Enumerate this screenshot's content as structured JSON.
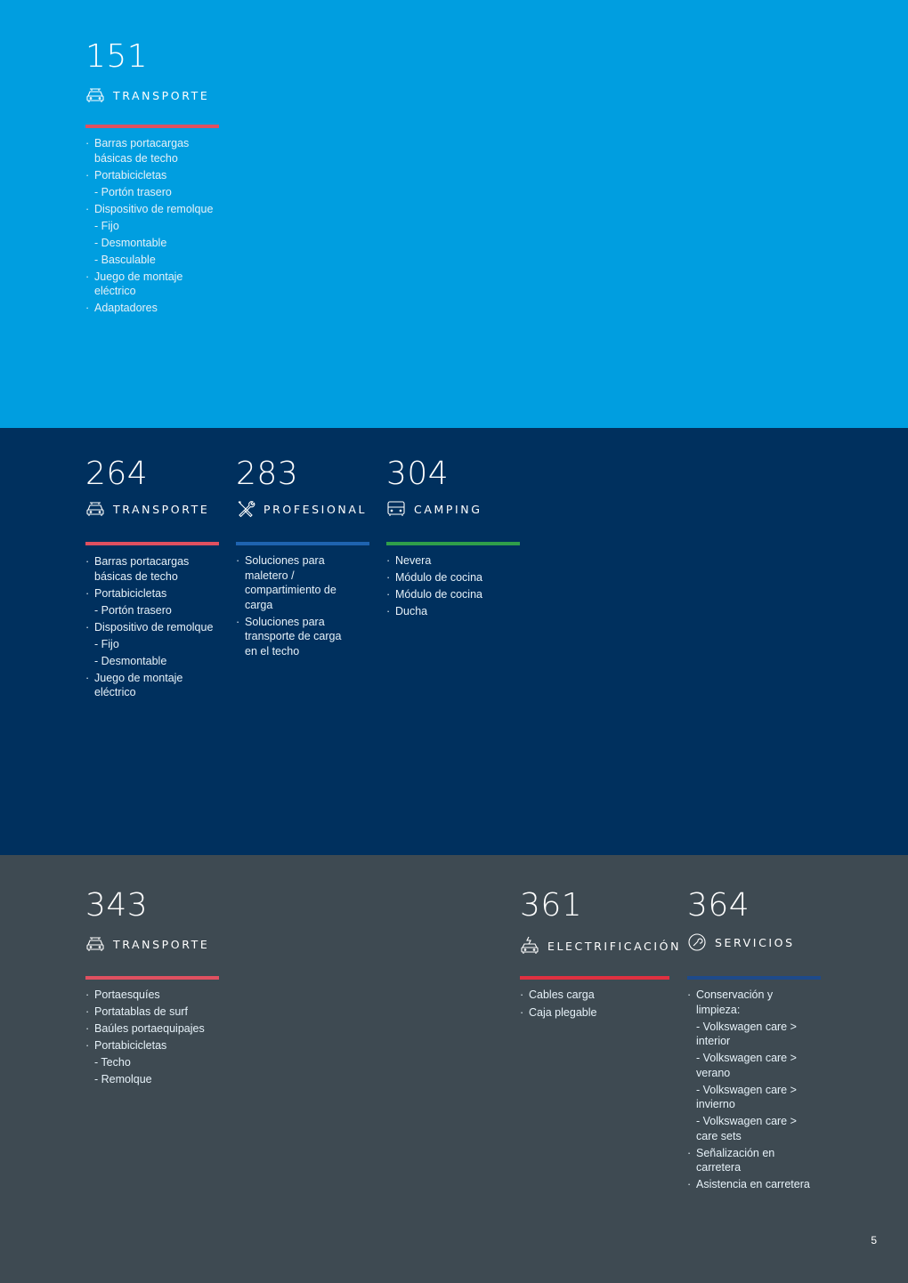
{
  "sections": {
    "transporte151": {
      "number": "151",
      "label": "TRANSPORTE",
      "icon": "car-roof-rack-icon",
      "rule_color": "#e05060",
      "items": [
        "Barras portacargas básicas de techo",
        "Portabicicletas",
        "- Portón trasero",
        "Dispositivo de remolque",
        "- Fijo",
        "- Desmontable",
        "- Basculable",
        "Juego de montaje eléctrico",
        "Adaptadores"
      ]
    },
    "transporte264": {
      "number": "264",
      "label": "TRANSPORTE",
      "icon": "car-roof-rack-icon",
      "rule_color": "#e05060",
      "items": [
        "Barras portacargas básicas de techo",
        "Portabicicletas",
        "- Portón trasero",
        "Dispositivo de remolque",
        "- Fijo",
        "- Desmontable",
        "Juego de montaje eléctrico"
      ]
    },
    "profesional283": {
      "number": "283",
      "label": "PROFESIONAL",
      "icon": "tools-icon",
      "rule_color": "#1e63b0",
      "items": [
        "Soluciones para maletero / compartimiento de carga",
        "Soluciones para transporte de carga en el techo"
      ]
    },
    "camping304": {
      "number": "304",
      "label": "CAMPING",
      "icon": "van-icon",
      "rule_color": "#2f9e4a",
      "items": [
        "Nevera",
        "Módulo de cocina",
        "Módulo de cocina",
        "Ducha"
      ]
    },
    "transporte343": {
      "number": "343",
      "label": "TRANSPORTE",
      "icon": "car-roof-rack-icon",
      "rule_color": "#e05060",
      "items": [
        "Portaesquíes",
        "Portatablas de surf",
        "Baúles portaequipajes",
        "Portabicicletas",
        "- Techo",
        "- Remolque"
      ]
    },
    "electrificacion361": {
      "number": "361",
      "label": "ELECTRIFICACIÓN",
      "icon": "electric-car-icon",
      "rule_color": "#e03040",
      "items": [
        "Cables carga",
        "Caja plegable"
      ]
    },
    "servicios364": {
      "number": "364",
      "label": "SERVICIOS",
      "icon": "wrench-circle-icon",
      "rule_color": "#1e4a8a",
      "items": [
        "Conservación y limpieza:",
        "- Volkswagen care > interior",
        "- Volkswagen care > verano",
        "- Volkswagen care > invierno",
        "- Volkswagen care > care sets",
        "Señalización en carretera",
        "Asistencia en carretera"
      ]
    }
  },
  "page_number": "5"
}
